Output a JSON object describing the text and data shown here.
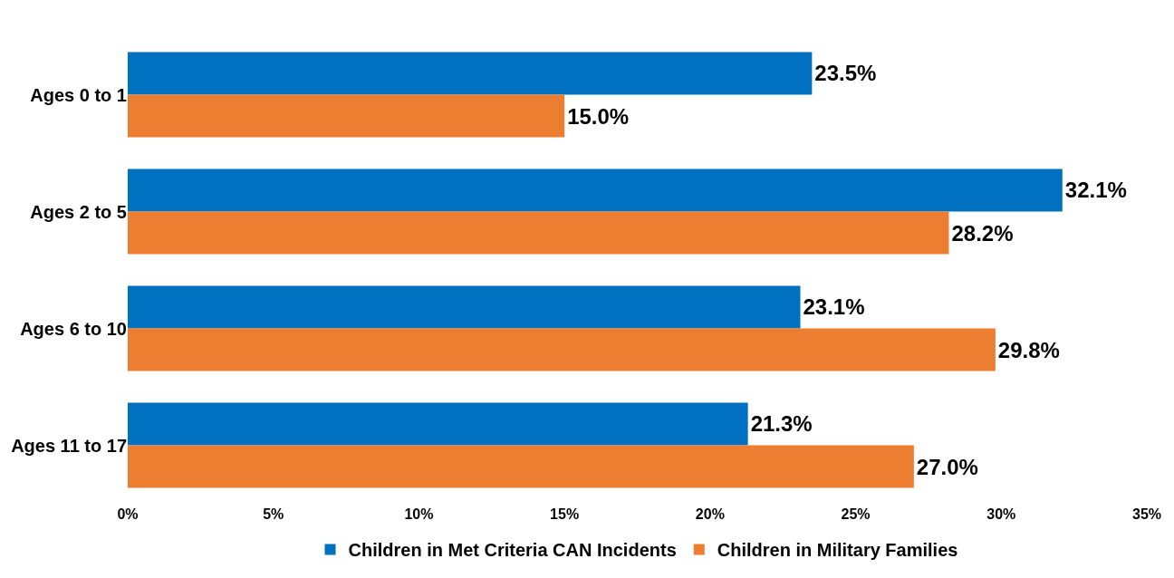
{
  "chart_data": {
    "type": "bar",
    "orientation": "horizontal",
    "categories": [
      "Ages 0 to 1",
      "Ages 2 to 5",
      "Ages 6 to 10",
      "Ages 11 to 17"
    ],
    "series": [
      {
        "name": "Children in Met Criteria CAN Incidents",
        "color": "#0070c0",
        "values": [
          23.5,
          32.1,
          23.1,
          21.3
        ],
        "value_labels": [
          "23.5%",
          "32.1%",
          "23.1%",
          "21.3%"
        ]
      },
      {
        "name": "Children in Military Families",
        "color": "#ed7d31",
        "values": [
          15.0,
          28.2,
          29.8,
          27.0
        ],
        "value_labels": [
          "15.0%",
          "28.2%",
          "29.8%",
          "27.0%"
        ]
      }
    ],
    "xlim": [
      0,
      35
    ],
    "xticks": [
      {
        "value": 0,
        "label": "0%"
      },
      {
        "value": 5,
        "label": "5%"
      },
      {
        "value": 10,
        "label": "10%"
      },
      {
        "value": 15,
        "label": "15%"
      },
      {
        "value": 20,
        "label": "20%"
      },
      {
        "value": 25,
        "label": "25%"
      },
      {
        "value": 30,
        "label": "30%"
      },
      {
        "value": 35,
        "label": "35%"
      }
    ],
    "legend": "bottom"
  }
}
